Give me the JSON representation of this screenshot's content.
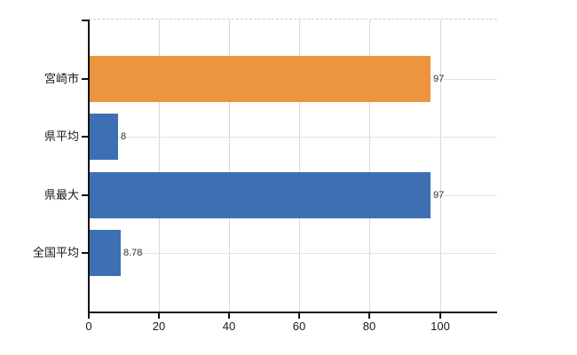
{
  "chart": {
    "background": "#ffffff",
    "axis_color": "#111111",
    "vertical_grid_color": "#d9d9d9",
    "horizontal_grid_color": "#dde6dd",
    "top_border_color": "#cfcfcf",
    "category_label_color": "#1a1a1a",
    "value_label_color": "#333333"
  },
  "chart_data": {
    "type": "bar",
    "orientation": "horizontal",
    "title": "",
    "xlabel": "",
    "ylabel": "",
    "categories": [
      "宮崎市",
      "県平均",
      "県最大",
      "全国平均"
    ],
    "values": [
      97,
      8,
      97,
      8.78
    ],
    "value_labels": [
      "97",
      "8",
      "97",
      "8.78"
    ],
    "bar_colors": [
      "#ec9440",
      "#3d70b2",
      "#3d70b2",
      "#3d70b2"
    ],
    "x_ticks": [
      0,
      20,
      40,
      60,
      80,
      100
    ],
    "x_tick_labels": [
      "0",
      "20",
      "40",
      "60",
      "80",
      "100"
    ],
    "xlim": [
      0,
      116.4
    ],
    "grid": true,
    "legend": false
  }
}
